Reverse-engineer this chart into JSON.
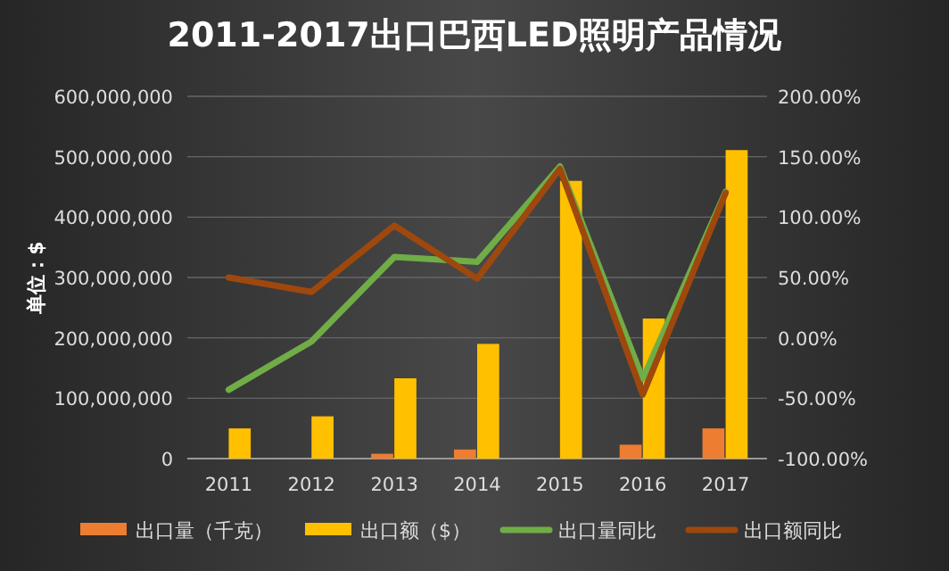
{
  "chart_data": {
    "type": "bar",
    "title": "2011-2017出口巴西LED照明产品情况",
    "ylabel": "单位：$",
    "categories": [
      "2011",
      "2012",
      "2013",
      "2014",
      "2015",
      "2016",
      "2017"
    ],
    "series": [
      {
        "name": "出口量（千克）",
        "color": "#ed7d31",
        "values": [
          null,
          null,
          8000000,
          15000000,
          null,
          23000000,
          50000000
        ]
      },
      {
        "name": "出口额（$）",
        "color": "#ffc000",
        "values": [
          50000000,
          70000000,
          133000000,
          190000000,
          460000000,
          232000000,
          511000000
        ]
      },
      {
        "name": "出口量同比",
        "type": "line",
        "axis": "y2",
        "color": "#70ad47",
        "values": [
          -43,
          -3,
          67,
          63,
          142,
          -34,
          121
        ]
      },
      {
        "name": "出口额同比",
        "type": "line",
        "axis": "y2",
        "color": "#9e480e",
        "values": [
          50,
          38,
          93,
          49,
          140,
          -47,
          120
        ]
      }
    ],
    "ylim": [
      0,
      600000000
    ],
    "yticks": [
      0,
      {
        "value": 100000000,
        "label": "100,000,000"
      },
      {
        "value": 200000000,
        "label": "200,000,000"
      },
      {
        "value": 300000000,
        "label": "300,000,000"
      },
      {
        "value": 400000000,
        "label": "400,000,000"
      },
      {
        "value": 500000000,
        "label": "500,000,000"
      },
      {
        "value": 600000000,
        "label": "600,000,000"
      }
    ],
    "y2lim": [
      -100,
      200
    ],
    "y2ticks": [
      {
        "value": -100,
        "label": "-100.00%"
      },
      {
        "value": -50,
        "label": "-50.00%"
      },
      {
        "value": 0,
        "label": "0.00%"
      },
      {
        "value": 50,
        "label": "50.00%"
      },
      {
        "value": 100,
        "label": "100.00%"
      },
      {
        "value": 150,
        "label": "150.00%"
      },
      {
        "value": 200,
        "label": "200.00%"
      }
    ],
    "grid": "y",
    "legend": "bottom"
  }
}
